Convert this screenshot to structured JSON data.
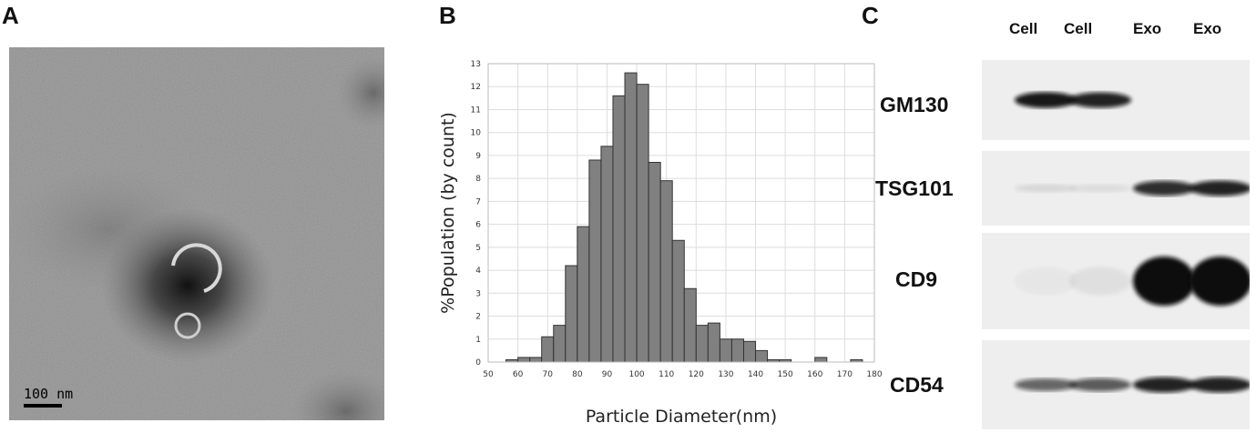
{
  "panels": {
    "a": {
      "letter": "A",
      "scale_label": "100 nm"
    },
    "b": {
      "letter": "B"
    },
    "c": {
      "letter": "C",
      "lanes": [
        "Cell",
        "Cell",
        "Exo",
        "Exo"
      ],
      "blots": [
        {
          "label": "GM130",
          "intensities": [
            0.95,
            0.9,
            0.0,
            0.0
          ]
        },
        {
          "label": "TSG101",
          "intensities": [
            0.1,
            0.08,
            0.85,
            0.9
          ]
        },
        {
          "label": "CD9",
          "intensities": [
            0.03,
            0.06,
            1.0,
            1.0
          ]
        },
        {
          "label": "CD54",
          "intensities": [
            0.6,
            0.65,
            0.9,
            0.9
          ]
        }
      ]
    }
  },
  "chart_data": {
    "type": "bar",
    "xlabel": "Particle Diameter(nm)",
    "ylabel": "%Population (by count)",
    "xlim": [
      50,
      180
    ],
    "ylim": [
      0,
      13
    ],
    "grid": true,
    "x_ticks": [
      50,
      60,
      70,
      80,
      90,
      100,
      110,
      120,
      130,
      140,
      150,
      160,
      170,
      180
    ],
    "y_ticks": [
      0,
      1,
      2,
      3,
      4,
      5,
      6,
      7,
      8,
      9,
      10,
      11,
      12,
      13
    ],
    "bin_width": 4,
    "bins": [
      {
        "start": 56,
        "value": 0.1
      },
      {
        "start": 60,
        "value": 0.2
      },
      {
        "start": 64,
        "value": 0.2
      },
      {
        "start": 68,
        "value": 1.1
      },
      {
        "start": 72,
        "value": 1.6
      },
      {
        "start": 76,
        "value": 4.2
      },
      {
        "start": 80,
        "value": 5.9
      },
      {
        "start": 84,
        "value": 8.8
      },
      {
        "start": 88,
        "value": 9.4
      },
      {
        "start": 92,
        "value": 11.6
      },
      {
        "start": 96,
        "value": 12.6
      },
      {
        "start": 100,
        "value": 12.1
      },
      {
        "start": 104,
        "value": 8.7
      },
      {
        "start": 108,
        "value": 7.9
      },
      {
        "start": 112,
        "value": 5.3
      },
      {
        "start": 116,
        "value": 3.2
      },
      {
        "start": 120,
        "value": 1.6
      },
      {
        "start": 124,
        "value": 1.7
      },
      {
        "start": 128,
        "value": 1.0
      },
      {
        "start": 132,
        "value": 1.0
      },
      {
        "start": 136,
        "value": 0.9
      },
      {
        "start": 140,
        "value": 0.5
      },
      {
        "start": 144,
        "value": 0.1
      },
      {
        "start": 148,
        "value": 0.1
      },
      {
        "start": 160,
        "value": 0.2
      },
      {
        "start": 172,
        "value": 0.1
      }
    ],
    "colors": {
      "bar": "#808080",
      "bar_stroke": "#333333",
      "grid": "#dddddd"
    }
  }
}
